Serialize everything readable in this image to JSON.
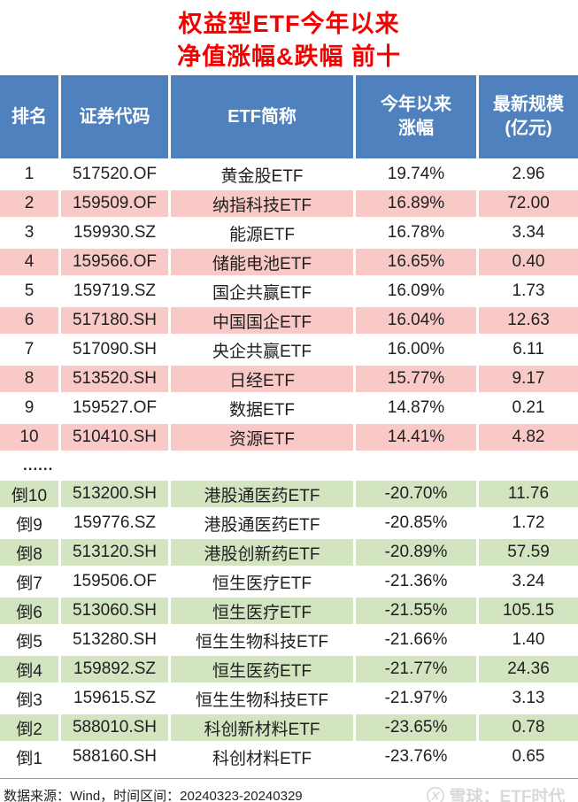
{
  "title": {
    "line1": "权益型ETF今年以来",
    "line2": "净值涨幅&跌幅  前十"
  },
  "table": {
    "header_keys": [
      "rank",
      "code",
      "name",
      "change",
      "size"
    ],
    "header_labels": [
      "排名",
      "证券代码",
      "ETF简称",
      "今年以来\n涨幅",
      "最新规模\n(亿元)"
    ],
    "separator": "......"
  },
  "chart_data": {
    "type": "table",
    "title": "权益型ETF今年以来 净值涨幅&跌幅 前十",
    "columns": [
      "排名",
      "证券代码",
      "ETF简称",
      "今年以来涨幅",
      "最新规模(亿元)"
    ],
    "top10": [
      [
        "1",
        "517520.OF",
        "黄金股ETF",
        "19.74%",
        "2.96"
      ],
      [
        "2",
        "159509.OF",
        "纳指科技ETF",
        "16.89%",
        "72.00"
      ],
      [
        "3",
        "159930.SZ",
        "能源ETF",
        "16.78%",
        "3.34"
      ],
      [
        "4",
        "159566.OF",
        "储能电池ETF",
        "16.65%",
        "0.40"
      ],
      [
        "5",
        "159719.SZ",
        "国企共赢ETF",
        "16.09%",
        "1.73"
      ],
      [
        "6",
        "517180.SH",
        "中国国企ETF",
        "16.04%",
        "12.63"
      ],
      [
        "7",
        "517090.SH",
        "央企共赢ETF",
        "16.00%",
        "6.11"
      ],
      [
        "8",
        "513520.SH",
        "日经ETF",
        "15.77%",
        "9.17"
      ],
      [
        "9",
        "159527.OF",
        "数据ETF",
        "14.87%",
        "0.21"
      ],
      [
        "10",
        "510410.SH",
        "资源ETF",
        "14.41%",
        "4.82"
      ]
    ],
    "bottom10": [
      [
        "倒10",
        "513200.SH",
        "港股通医药ETF",
        "-20.70%",
        "11.76"
      ],
      [
        "倒9",
        "159776.SZ",
        "港股通医药ETF",
        "-20.85%",
        "1.72"
      ],
      [
        "倒8",
        "513120.SH",
        "港股创新药ETF",
        "-20.89%",
        "57.59"
      ],
      [
        "倒7",
        "159506.OF",
        "恒生医疗ETF",
        "-21.36%",
        "3.24"
      ],
      [
        "倒6",
        "513060.SH",
        "恒生医疗ETF",
        "-21.55%",
        "105.15"
      ],
      [
        "倒5",
        "513280.SH",
        "恒生生物科技ETF",
        "-21.66%",
        "1.40"
      ],
      [
        "倒4",
        "159892.SZ",
        "恒生医药ETF",
        "-21.77%",
        "24.36"
      ],
      [
        "倒3",
        "159615.SZ",
        "恒生生物科技ETF",
        "-21.97%",
        "3.13"
      ],
      [
        "倒2",
        "588010.SH",
        "科创新材料ETF",
        "-23.65%",
        "0.78"
      ],
      [
        "倒1",
        "588160.SH",
        "科创材料ETF",
        "-23.76%",
        "0.65"
      ]
    ]
  },
  "footer": {
    "source": "数据来源：Wind，时间区间：20240323-20240329",
    "watermark": "雪球：ETF时代_"
  },
  "colors": {
    "header_bg": "#4E81BD",
    "pink": "#F8C9C6",
    "green": "#D2E5C0",
    "title_red": "#F40000",
    "watermark_gray": "#D9D9D9"
  }
}
